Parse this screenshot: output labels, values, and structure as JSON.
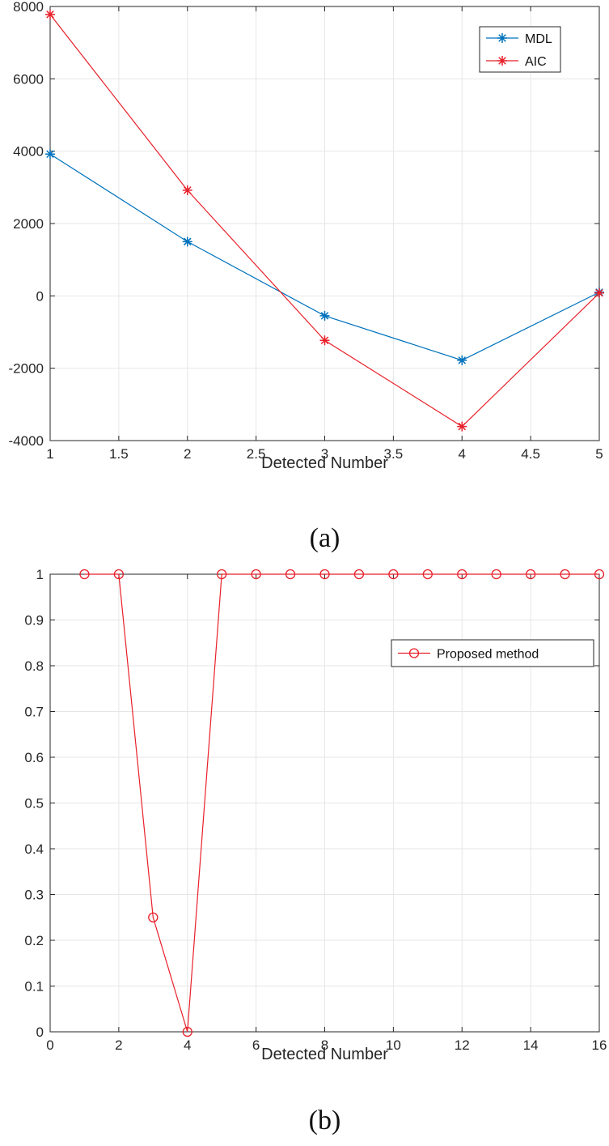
{
  "chart_data": [
    {
      "type": "line",
      "caption": "(a)",
      "xlabel": "Detected Number",
      "ylabel": "",
      "xlim": [
        1,
        5
      ],
      "ylim": [
        -4000,
        8000
      ],
      "xticks": [
        "1",
        "1.5",
        "2",
        "2.5",
        "3",
        "3.5",
        "4",
        "4.5",
        "5"
      ],
      "yticks": [
        "-4000",
        "-2000",
        "0",
        "2000",
        "4000",
        "6000",
        "8000"
      ],
      "grid": true,
      "legend_position": "top-right",
      "series": [
        {
          "name": "MDL",
          "color": "#0072BD",
          "marker": "asterisk",
          "x": [
            1,
            2,
            3,
            4,
            5
          ],
          "y": [
            3920,
            1500,
            -550,
            -1780,
            100
          ]
        },
        {
          "name": "AIC",
          "color": "#E8202A",
          "marker": "asterisk",
          "x": [
            1,
            2,
            3,
            4,
            5
          ],
          "y": [
            7780,
            2920,
            -1230,
            -3610,
            80
          ]
        }
      ]
    },
    {
      "type": "line",
      "caption": "(b)",
      "xlabel": "Detected Number",
      "ylabel": "",
      "xlim": [
        0,
        16
      ],
      "ylim": [
        0,
        1
      ],
      "xticks": [
        "0",
        "2",
        "4",
        "6",
        "8",
        "10",
        "12",
        "14",
        "16"
      ],
      "yticks": [
        "0",
        "0.1",
        "0.2",
        "0.3",
        "0.4",
        "0.5",
        "0.6",
        "0.7",
        "0.8",
        "0.9",
        "1"
      ],
      "grid": true,
      "legend_position": "top-right",
      "series": [
        {
          "name": "Proposed method",
          "color": "#E8202A",
          "marker": "circle",
          "x": [
            1,
            2,
            3,
            4,
            5,
            6,
            7,
            8,
            9,
            10,
            11,
            12,
            13,
            14,
            15,
            16
          ],
          "y": [
            1,
            1,
            0.25,
            0,
            1,
            1,
            1,
            1,
            1,
            1,
            1,
            1,
            1,
            1,
            1,
            1
          ]
        }
      ]
    }
  ]
}
